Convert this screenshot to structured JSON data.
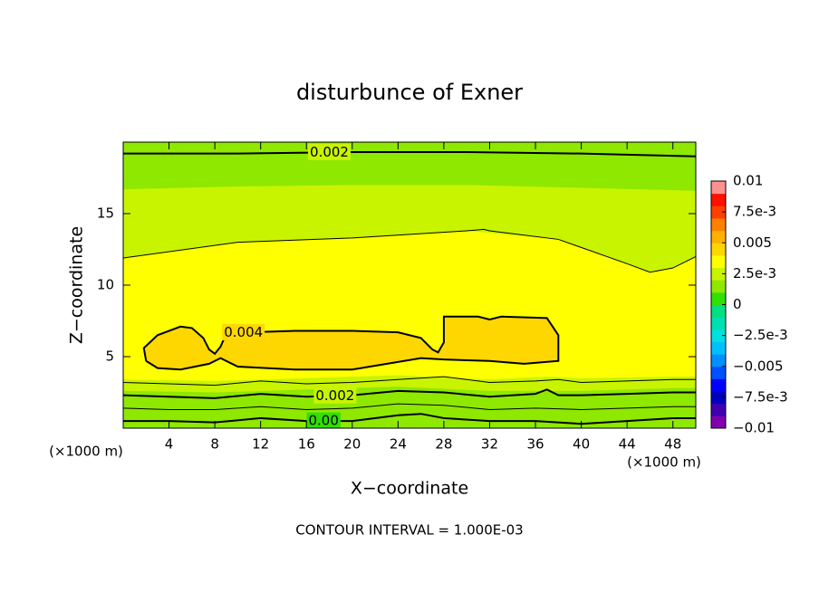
{
  "chart_data": {
    "type": "contour",
    "title": "disturbunce of Exner",
    "xlabel": "X−coordinate",
    "ylabel": "Z−coordinate",
    "x_unit": "(×1000 m)",
    "y_unit": "(×1000 m)",
    "annotation": "CONTOUR INTERVAL = 1.000E-03",
    "xlim": [
      0,
      50
    ],
    "ylim": [
      0,
      20
    ],
    "xticks": [
      4,
      8,
      12,
      16,
      20,
      24,
      28,
      32,
      36,
      40,
      44,
      48
    ],
    "yticks": [
      5,
      10,
      15
    ],
    "clim": [
      -0.01,
      0.01
    ],
    "colors": [
      "#8000b0",
      "#4000b0",
      "#0000c0",
      "#0000ff",
      "#0050ff",
      "#0090ff",
      "#00c0ff",
      "#00e0e0",
      "#00e0b0",
      "#00e080",
      "#30e000",
      "#8ee800",
      "#c8f400",
      "#ffff00",
      "#ffd700",
      "#ffb000",
      "#ff8000",
      "#ff4000",
      "#ff1000",
      "#ff9090"
    ],
    "cticks": [
      {
        "value": -0.01,
        "label": "−0.01"
      },
      {
        "value": -0.0075,
        "label": "−7.5e-3"
      },
      {
        "value": -0.005,
        "label": "−0.005"
      },
      {
        "value": -0.0025,
        "label": "−2.5e-3"
      },
      0,
      {
        "value": 0.0025,
        "label": "2.5e-3"
      },
      0.005,
      {
        "value": 0.0075,
        "label": "7.5e-3"
      },
      0.01
    ],
    "fills": [
      {
        "level": 0.0015,
        "x": [
          0,
          8,
          16,
          24,
          32,
          40,
          48,
          50,
          50,
          40,
          30,
          20,
          10,
          0
        ],
        "y": [
          0.8,
          0.9,
          1.0,
          1.2,
          0.9,
          0.7,
          1.0,
          1.0,
          18.8,
          18.9,
          19.0,
          19.0,
          18.9,
          18.8
        ]
      },
      {
        "level": 0.0025,
        "x": [
          0,
          8,
          16,
          24,
          32,
          40,
          48,
          50,
          50,
          40,
          30,
          20,
          10,
          0
        ],
        "y": [
          2.6,
          2.5,
          2.7,
          2.9,
          2.6,
          2.6,
          2.8,
          2.8,
          16.6,
          16.8,
          17.0,
          17.0,
          16.9,
          16.7
        ]
      },
      {
        "level": 0.0035,
        "x": [
          0,
          8,
          16,
          24,
          32,
          37,
          40,
          48,
          50,
          50,
          48,
          46,
          44,
          38,
          30,
          20,
          10,
          0
        ],
        "y": [
          3.4,
          3.3,
          3.5,
          3.7,
          3.4,
          3.6,
          3.5,
          3.6,
          3.6,
          12.0,
          11.2,
          10.9,
          11.5,
          13.2,
          13.8,
          13.3,
          13.0,
          11.9
        ]
      },
      {
        "level": 0.0045,
        "x": [
          2,
          1.8,
          3,
          5,
          6,
          7,
          7.5,
          8,
          8.5,
          9,
          11,
          15,
          20,
          24,
          26,
          27,
          27.5,
          28,
          28,
          31,
          32,
          33,
          37,
          38,
          38,
          35,
          32,
          28,
          26,
          20,
          15,
          10,
          8.5,
          7.5,
          5,
          3,
          2
        ],
        "y": [
          4.7,
          5.6,
          6.5,
          7.1,
          7.0,
          6.3,
          5.5,
          5.2,
          5.7,
          6.6,
          6.7,
          6.8,
          6.8,
          6.7,
          6.3,
          5.5,
          5.3,
          6.0,
          7.8,
          7.8,
          7.6,
          7.8,
          7.7,
          6.5,
          4.7,
          4.5,
          4.7,
          4.8,
          4.9,
          4.1,
          4.1,
          4.3,
          4.9,
          4.5,
          4.1,
          4.2,
          4.7
        ]
      }
    ],
    "contours": [
      {
        "level": 0.002,
        "x": [
          0,
          10,
          20,
          30,
          40,
          50
        ],
        "y": [
          19.2,
          19.2,
          19.3,
          19.3,
          19.2,
          19.0
        ]
      },
      {
        "level": 0.003,
        "x": [
          0,
          10,
          20,
          30,
          31.5,
          32,
          38,
          44,
          46,
          48,
          50
        ],
        "y": [
          11.9,
          13.0,
          13.3,
          13.8,
          13.9,
          13.8,
          13.2,
          11.5,
          10.9,
          11.2,
          12.0
        ]
      },
      {
        "level": 0.004,
        "x": [
          2,
          1.8,
          3,
          5,
          6,
          7,
          7.5,
          8,
          8.5,
          9,
          11,
          15,
          20,
          24,
          26,
          27,
          27.5,
          28,
          28,
          31,
          32,
          33,
          37,
          38,
          38,
          35,
          32,
          28,
          26,
          20,
          15,
          10,
          8.5,
          7.5,
          5,
          3,
          2
        ],
        "y": [
          4.7,
          5.6,
          6.5,
          7.1,
          7.0,
          6.3,
          5.5,
          5.2,
          5.7,
          6.6,
          6.7,
          6.8,
          6.8,
          6.7,
          6.3,
          5.5,
          5.3,
          6.0,
          7.8,
          7.8,
          7.6,
          7.8,
          7.7,
          6.5,
          4.7,
          4.5,
          4.7,
          4.8,
          4.9,
          4.1,
          4.1,
          4.3,
          4.9,
          4.5,
          4.1,
          4.2,
          4.7
        ]
      },
      {
        "level": 0.003,
        "x": [
          0,
          4,
          8,
          12,
          16,
          20,
          24,
          28,
          32,
          36,
          38,
          40,
          44,
          48,
          50
        ],
        "y": [
          3.2,
          3.1,
          3.0,
          3.3,
          3.1,
          3.2,
          3.4,
          3.6,
          3.2,
          3.3,
          3.4,
          3.2,
          3.3,
          3.4,
          3.4
        ]
      },
      {
        "level": 0.002,
        "x": [
          0,
          4,
          8,
          12,
          16,
          20,
          24,
          28,
          32,
          36,
          37,
          38,
          40,
          44,
          48,
          50
        ],
        "y": [
          2.3,
          2.2,
          2.1,
          2.4,
          2.2,
          2.3,
          2.6,
          2.5,
          2.2,
          2.4,
          2.7,
          2.3,
          2.3,
          2.4,
          2.5,
          2.5
        ]
      },
      {
        "level": 0.001,
        "x": [
          0,
          4,
          8,
          12,
          16,
          20,
          24,
          28,
          32,
          36,
          40,
          44,
          48,
          50
        ],
        "y": [
          1.4,
          1.3,
          1.3,
          1.5,
          1.3,
          1.4,
          1.7,
          1.6,
          1.3,
          1.4,
          1.3,
          1.4,
          1.5,
          1.5
        ]
      },
      {
        "level": {
          "value": 0,
          "label": "0.00"
        },
        "x": [
          0,
          4,
          8,
          12,
          16,
          20,
          24,
          26,
          28,
          32,
          36,
          40,
          44,
          48,
          50
        ],
        "y": [
          0.5,
          0.5,
          0.4,
          0.7,
          0.5,
          0.5,
          0.9,
          1.0,
          0.7,
          0.5,
          0.5,
          0.3,
          0.5,
          0.7,
          0.7
        ]
      }
    ]
  }
}
